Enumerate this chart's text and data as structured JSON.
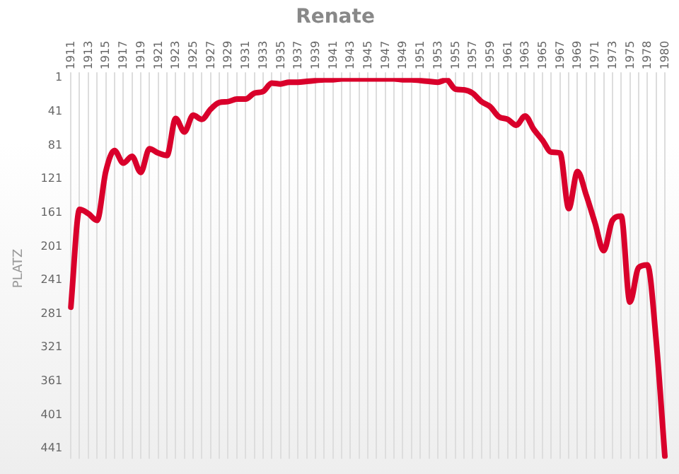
{
  "chart_data": {
    "type": "line",
    "title": "Renate",
    "ylabel": "PLATZ",
    "categories": [
      "1911",
      null,
      "1913",
      null,
      "1915",
      null,
      "1917",
      null,
      "1919",
      null,
      "1921",
      null,
      "1923",
      null,
      "1925",
      null,
      "1927",
      null,
      "1929",
      null,
      "1931",
      null,
      "1933",
      null,
      "1935",
      null,
      "1937",
      null,
      "1939",
      null,
      "1941",
      null,
      "1943",
      null,
      "1945",
      null,
      "1947",
      null,
      "1949",
      null,
      "1951",
      null,
      "1953",
      null,
      "1955",
      null,
      "1957",
      null,
      "1959",
      null,
      "1961",
      null,
      "1963",
      null,
      "1965",
      null,
      "1967",
      null,
      "1969",
      null,
      "1971",
      null,
      "1973",
      null,
      "1975",
      null,
      "1978",
      null,
      "1980"
    ],
    "series": [
      {
        "color": "#d9002b",
        "values": [
          273,
          157,
          162,
          170,
          112,
          87,
          102,
          94,
          113,
          85,
          90,
          93,
          49,
          65,
          45,
          50,
          38,
          30,
          29,
          26,
          26,
          19,
          17,
          7,
          8,
          6,
          6,
          5,
          4,
          3,
          3,
          2,
          2,
          2,
          2,
          2,
          2,
          2,
          3,
          3,
          4,
          5,
          6,
          3,
          14,
          15,
          19,
          29,
          35,
          47,
          50,
          57,
          46,
          62,
          75,
          89,
          90,
          156,
          112,
          140,
          173,
          206,
          170,
          165,
          267,
          226,
          223,
          312,
          450
        ]
      }
    ],
    "ylim": [
      453,
      1
    ],
    "yticks": [
      1,
      41,
      81,
      121,
      161,
      201,
      241,
      281,
      321,
      361,
      401,
      441
    ],
    "grid": "x",
    "marker": "none",
    "line_style": "solid"
  }
}
